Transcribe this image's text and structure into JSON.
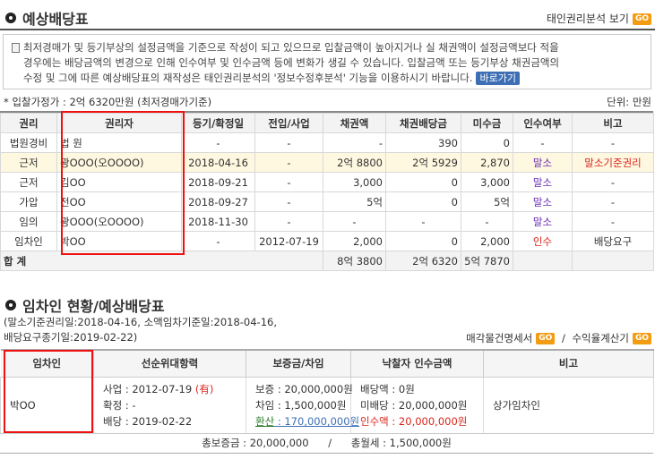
{
  "section1": {
    "title": "예상배당표",
    "analysis_link": "태인권리분석 보기",
    "go": "GO",
    "notice_line1": "최저경매가 및 등기부상의 설정금액을 기준으로 작성이 되고 있으므로 입찰금액이 높아지거나 실 채권액이 설정금액보다 적을",
    "notice_line2": "경우에는 배당금액의 변경으로 인해 인수여부 및 인수금액 등에 변화가 생길 수 있습니다. 입찰금액 또는 등기부상 채권금액의",
    "notice_line3": "수정 및 그에 따른 예상배당표의 재작성은 태인권리분석의 '정보수정후분석' 기능을 이용하시기 바랍니다.",
    "shortcut_button": "바로가기",
    "bid_price": "* 입찰가정가 : 2억 6320만원 (최저경매가기준)",
    "unit": "단위: 만원"
  },
  "dividend_table": {
    "headers": [
      "권리",
      "권리자",
      "등기/확정일",
      "전입/사업",
      "채권액",
      "채권배당금",
      "미수금",
      "인수여부",
      "비고"
    ],
    "rows": [
      {
        "right": "법원경비",
        "holder": "법 원",
        "reg": "-",
        "move": "-",
        "claim": "-",
        "paid": "390",
        "unpaid": "0",
        "assume": "-",
        "note": "-"
      },
      {
        "right": "근저",
        "holder": "광OOO(오OOOO)",
        "reg": "2018-04-16",
        "move": "-",
        "claim": "2억 8800",
        "paid": "2억 5929",
        "unpaid": "2,870",
        "assume": "말소",
        "note": "말소기준권리"
      },
      {
        "right": "근저",
        "holder": "김OO",
        "reg": "2018-09-21",
        "move": "-",
        "claim": "3,000",
        "paid": "0",
        "unpaid": "3,000",
        "assume": "말소",
        "note": "-"
      },
      {
        "right": "가압",
        "holder": "전OO",
        "reg": "2018-09-27",
        "move": "-",
        "claim": "5억",
        "paid": "0",
        "unpaid": "5억",
        "assume": "말소",
        "note": "-"
      },
      {
        "right": "임의",
        "holder": "광OOO(오OOOO)",
        "reg": "2018-11-30",
        "move": "-",
        "claim": "-",
        "paid": "-",
        "unpaid": "-",
        "assume": "말소",
        "note": "-"
      },
      {
        "right": "임차인",
        "holder": "박OO",
        "reg": "-",
        "move": "2012-07-19",
        "claim": "2,000",
        "paid": "0",
        "unpaid": "2,000",
        "assume": "인수",
        "note": "배당요구"
      }
    ],
    "total_label": "합 계",
    "total_claim": "8억 3800",
    "total_paid": "2억 6320",
    "total_unpaid": "5억 7870"
  },
  "section2": {
    "title": "임차인 현황/예상배당표",
    "base_line1": "(말소기준권리일:2018-04-16, 소액임차기준일:2018-04-16,",
    "base_line2": "배당요구종기일:2019-02-22)",
    "link1": "매각물건명세서",
    "link2": "수익율계산기",
    "go": "GO",
    "sep": "/"
  },
  "tenant_table": {
    "headers": [
      "임차인",
      "선순위대항력",
      "보증금/차임",
      "낙찰자 인수금액",
      "비고"
    ],
    "name": "박OO",
    "biz_label": "사업 : 2012-07-19",
    "biz_flag": "(有)",
    "confirm": "확정 : -",
    "dividend_req": "배당 : 2019-02-22",
    "deposit": "보증 : 20,000,000원",
    "rent": "차임 : 1,500,000원",
    "converted_label": "환산",
    "converted_value": " : 170,000,000원",
    "div_amount": "배당액 : 0원",
    "undistributed": "미배당 : 20,000,000원",
    "assumed_label": "인수액",
    "assumed_value": " : 20,000,000원",
    "note": "상가임차인",
    "total_deposit": "총보증금 : 20,000,000",
    "total_sep": "/",
    "total_rent": "총월세 : 1,500,000원"
  }
}
